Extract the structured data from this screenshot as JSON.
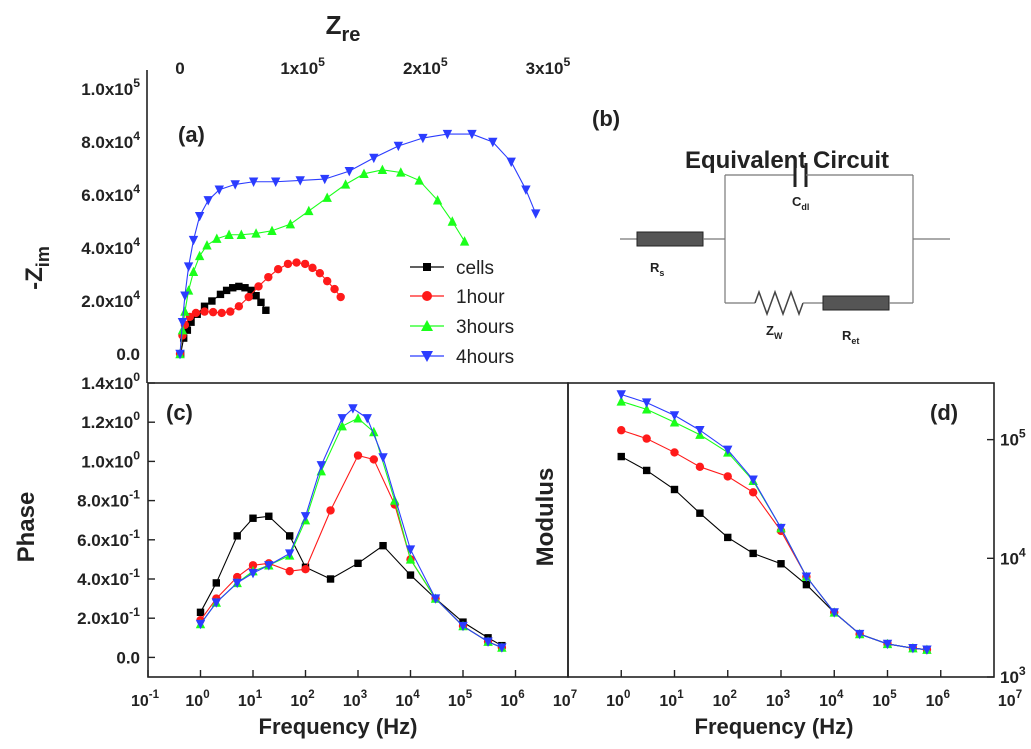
{
  "colors": {
    "cells": "#000000",
    "1hour": "#ff1a1a",
    "3hours": "#1aff1a",
    "4hours": "#2b3cff",
    "axis": "#222222"
  },
  "chart_data": [
    {
      "panel": "(a)",
      "type": "scatter",
      "xlabel": "Z",
      "xlabel_sub": "re",
      "ylabel": "-Z",
      "ylabel_sub": "im",
      "xlim": [
        0,
        300000
      ],
      "ylim": [
        0,
        100000
      ],
      "x_ticks": [
        "0",
        "1x10",
        "2x10",
        "3x10"
      ],
      "x_tick_exp": [
        "",
        "5",
        "5",
        "5"
      ],
      "y_ticks": [
        "0.0",
        "2.0x10",
        "4.0x10",
        "6.0x10",
        "8.0x10",
        "1.0x10"
      ],
      "y_tick_exp": [
        "",
        "4",
        "4",
        "4",
        "4",
        "5"
      ],
      "legend_position": "bottom-right",
      "series": [
        {
          "name": "cells",
          "marker": "square",
          "x": [
            500,
            3000,
            6000,
            9000,
            14000,
            20000,
            26000,
            33000,
            38000,
            43000,
            48000,
            53000,
            58000,
            62000,
            66000,
            70000
          ],
          "y": [
            0,
            6000,
            9000,
            12000,
            15000,
            18000,
            20000,
            22500,
            24000,
            25000,
            25500,
            25000,
            24000,
            22000,
            19500,
            16500
          ]
        },
        {
          "name": "1hour",
          "marker": "circle",
          "x": [
            0,
            2000,
            4000,
            8000,
            13000,
            20000,
            27000,
            34000,
            41000,
            48000,
            56000,
            64000,
            72000,
            80000,
            88000,
            95000,
            102000,
            108000,
            114000,
            120000,
            126000,
            131000
          ],
          "y": [
            0,
            7000,
            11000,
            14000,
            15500,
            16000,
            15800,
            15500,
            16000,
            18000,
            21500,
            25500,
            29000,
            32000,
            34000,
            34500,
            34000,
            32500,
            30500,
            27500,
            24500,
            21500
          ]
        },
        {
          "name": "3hours",
          "marker": "triangle-up",
          "x": [
            0,
            2000,
            4000,
            7000,
            11000,
            16000,
            22000,
            30000,
            40000,
            50000,
            62000,
            75000,
            90000,
            105000,
            120000,
            135000,
            150000,
            165000,
            180000,
            195000,
            210000,
            222000,
            232000
          ],
          "y": [
            0,
            9000,
            16000,
            24000,
            31000,
            37000,
            41000,
            43500,
            45000,
            45000,
            45500,
            46500,
            49000,
            54000,
            59000,
            64000,
            68000,
            69500,
            68500,
            65500,
            58000,
            50000,
            42500
          ]
        },
        {
          "name": "4hours",
          "marker": "triangle-down",
          "x": [
            0,
            2000,
            4000,
            7000,
            11000,
            16000,
            23000,
            32000,
            45000,
            60000,
            78000,
            98000,
            118000,
            138000,
            158000,
            178000,
            198000,
            218000,
            238000,
            255000,
            270000,
            282000,
            290000
          ],
          "y": [
            0,
            12000,
            22000,
            33000,
            43000,
            52000,
            58000,
            62000,
            64000,
            65000,
            65000,
            65500,
            66000,
            69000,
            74000,
            78500,
            81500,
            83000,
            83000,
            80000,
            72500,
            62000,
            53000
          ]
        }
      ]
    },
    {
      "panel": "(b)",
      "type": "diagram",
      "title": "Equivalent Circuit",
      "components": [
        {
          "name": "R",
          "sub": "s"
        },
        {
          "name": "C",
          "sub": "dl"
        },
        {
          "name": "Z",
          "sub": "W"
        },
        {
          "name": "R",
          "sub": "et"
        }
      ]
    },
    {
      "panel": "(c)",
      "type": "scatter",
      "xlabel": "Frequency (Hz)",
      "ylabel": "Phase",
      "x_scale": "log",
      "xlim": [
        0.1,
        10000000
      ],
      "ylim": [
        -0.1,
        1.4
      ],
      "x_ticks": [
        "10",
        "10",
        "10",
        "10",
        "10",
        "10",
        "10",
        "10",
        "10"
      ],
      "x_tick_exp": [
        "-1",
        "0",
        "1",
        "2",
        "3",
        "4",
        "5",
        "6",
        "7"
      ],
      "y_ticks": [
        "0.0",
        "2.0x10",
        "4.0x10",
        "6.0x10",
        "8.0x10",
        "1.0x10",
        "1.2x10",
        "1.4x10"
      ],
      "y_tick_exp": [
        "",
        "-1",
        "-1",
        "-1",
        "-1",
        "0",
        "0",
        "0"
      ],
      "series": [
        {
          "name": "cells",
          "marker": "square",
          "x": [
            1,
            2,
            5,
            10,
            20,
            50,
            100,
            300,
            1000,
            3000,
            10000,
            30000,
            100000,
            300000,
            550000
          ],
          "y": [
            0.23,
            0.38,
            0.62,
            0.71,
            0.72,
            0.62,
            0.46,
            0.4,
            0.48,
            0.57,
            0.42,
            0.3,
            0.18,
            0.1,
            0.06
          ]
        },
        {
          "name": "1hour",
          "marker": "circle",
          "x": [
            1,
            2,
            5,
            10,
            20,
            50,
            100,
            300,
            1000,
            2000,
            5000,
            10000,
            30000,
            100000,
            300000,
            550000
          ],
          "y": [
            0.19,
            0.3,
            0.41,
            0.47,
            0.48,
            0.44,
            0.45,
            0.75,
            1.03,
            1.01,
            0.78,
            0.5,
            0.3,
            0.16,
            0.08,
            0.05
          ]
        },
        {
          "name": "3hours",
          "marker": "triangle-up",
          "x": [
            1,
            2,
            5,
            10,
            20,
            50,
            100,
            200,
            500,
            1000,
            2000,
            5000,
            10000,
            30000,
            100000,
            300000,
            550000
          ],
          "y": [
            0.17,
            0.28,
            0.38,
            0.44,
            0.47,
            0.52,
            0.7,
            0.95,
            1.18,
            1.22,
            1.15,
            0.8,
            0.5,
            0.3,
            0.16,
            0.08,
            0.05
          ]
        },
        {
          "name": "4hours",
          "marker": "triangle-down",
          "x": [
            1,
            2,
            5,
            10,
            20,
            50,
            100,
            200,
            500,
            800,
            1500,
            3000,
            10000,
            30000,
            100000,
            300000,
            550000
          ],
          "y": [
            0.17,
            0.28,
            0.38,
            0.43,
            0.47,
            0.53,
            0.72,
            0.98,
            1.22,
            1.27,
            1.22,
            1.02,
            0.55,
            0.3,
            0.16,
            0.08,
            0.05
          ]
        }
      ]
    },
    {
      "panel": "(d)",
      "type": "scatter",
      "xlabel": "Frequency (Hz)",
      "ylabel": "Modulus",
      "x_scale": "log",
      "y_scale": "log",
      "xlim": [
        0.1,
        10000000
      ],
      "ylim": [
        1000,
        300000
      ],
      "x_ticks": [
        "10",
        "10",
        "10",
        "10",
        "10",
        "10",
        "10"
      ],
      "x_tick_exp": [
        "0",
        "1",
        "2",
        "3",
        "4",
        "5",
        "6"
      ],
      "x_tick_last": "10",
      "x_tick_last_exp": "7",
      "y_ticks": [
        "10",
        "10",
        "10"
      ],
      "y_tick_exp": [
        "3",
        "4",
        "5"
      ],
      "series": [
        {
          "name": "cells",
          "marker": "square",
          "x": [
            1,
            3,
            10,
            30,
            100,
            300,
            1000,
            3000,
            10000,
            30000,
            100000,
            300000,
            550000
          ],
          "y": [
            72000,
            55000,
            38000,
            24000,
            15000,
            11000,
            9000,
            6000,
            3500,
            2300,
            1900,
            1750,
            1700
          ]
        },
        {
          "name": "1hour",
          "marker": "circle",
          "x": [
            1,
            3,
            10,
            30,
            100,
            300,
            1000,
            3000,
            10000,
            30000,
            100000,
            300000,
            550000
          ],
          "y": [
            120000,
            102000,
            78000,
            59000,
            49000,
            36000,
            17000,
            7000,
            3500,
            2300,
            1900,
            1750,
            1700
          ]
        },
        {
          "name": "3hours",
          "marker": "triangle-up",
          "x": [
            1,
            3,
            10,
            30,
            100,
            300,
            1000,
            3000,
            10000,
            30000,
            100000,
            300000,
            550000
          ],
          "y": [
            210000,
            180000,
            140000,
            110000,
            78000,
            45000,
            18000,
            7000,
            3500,
            2300,
            1900,
            1750,
            1700
          ]
        },
        {
          "name": "4hours",
          "marker": "triangle-down",
          "x": [
            1,
            3,
            10,
            30,
            100,
            300,
            1000,
            3000,
            10000,
            30000,
            100000,
            300000,
            550000
          ],
          "y": [
            240000,
            205000,
            160000,
            120000,
            82000,
            46000,
            18000,
            7000,
            3500,
            2300,
            1900,
            1750,
            1700
          ]
        }
      ]
    }
  ]
}
